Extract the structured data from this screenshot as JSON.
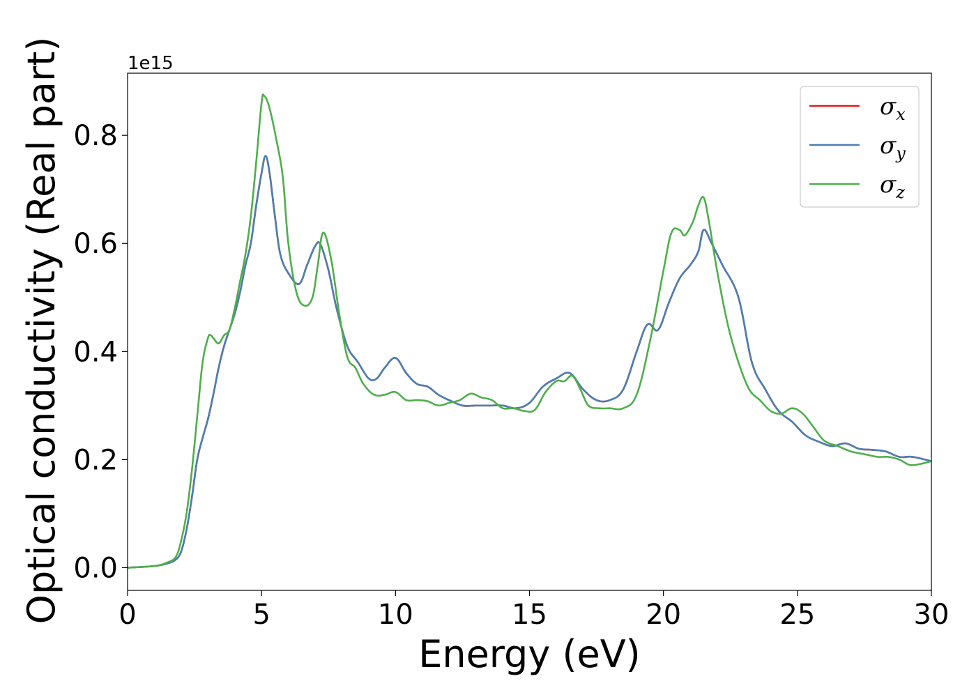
{
  "chart_data": {
    "type": "line",
    "xlabel": "Energy (eV)",
    "ylabel": "Optical conductivity (Real part)",
    "y_offset_text": "1e15",
    "xlim": [
      0,
      30
    ],
    "ylim": [
      -0.042,
      0.915
    ],
    "x_ticks": [
      0,
      5,
      10,
      15,
      20,
      25,
      30
    ],
    "x_tick_labels": [
      "0",
      "5",
      "10",
      "15",
      "20",
      "25",
      "30"
    ],
    "y_ticks": [
      0.0,
      0.2,
      0.4,
      0.6,
      0.8
    ],
    "y_tick_labels": [
      "0.0",
      "0.2",
      "0.4",
      "0.6",
      "0.8"
    ],
    "grid": false,
    "legend_position": "top-right",
    "series": [
      {
        "name": "σx",
        "label_base": "σ",
        "label_sub": "x",
        "color": "#e41a1c",
        "x": [
          0,
          1,
          1.5,
          1.8,
          2.0,
          2.2,
          2.4,
          2.6,
          2.8,
          3.0,
          3.2,
          3.4,
          3.6,
          3.8,
          4.0,
          4.2,
          4.4,
          4.6,
          4.8,
          5.0,
          5.15,
          5.3,
          5.5,
          5.7,
          6.0,
          6.4,
          6.7,
          7.0,
          7.2,
          7.5,
          7.8,
          8.2,
          8.6,
          9.0,
          9.3,
          9.6,
          10.0,
          10.4,
          10.8,
          11.2,
          11.6,
          12.0,
          12.5,
          13.0,
          13.5,
          14.0,
          14.5,
          15.0,
          15.5,
          16.0,
          16.5,
          17.0,
          17.5,
          18.0,
          18.5,
          19.0,
          19.4,
          19.8,
          20.2,
          20.6,
          21.0,
          21.3,
          21.5,
          21.8,
          22.2,
          22.8,
          23.3,
          23.8,
          24.3,
          24.8,
          25.3,
          25.8,
          26.3,
          26.8,
          27.3,
          27.8,
          28.3,
          28.8,
          29.3,
          30.0
        ],
        "y": [
          0.0,
          0.003,
          0.008,
          0.015,
          0.03,
          0.07,
          0.13,
          0.2,
          0.24,
          0.275,
          0.32,
          0.37,
          0.41,
          0.44,
          0.47,
          0.51,
          0.56,
          0.6,
          0.67,
          0.73,
          0.762,
          0.73,
          0.65,
          0.58,
          0.545,
          0.525,
          0.56,
          0.595,
          0.598,
          0.55,
          0.48,
          0.41,
          0.38,
          0.35,
          0.35,
          0.37,
          0.388,
          0.36,
          0.34,
          0.335,
          0.32,
          0.31,
          0.3,
          0.3,
          0.3,
          0.3,
          0.295,
          0.305,
          0.335,
          0.35,
          0.36,
          0.33,
          0.31,
          0.31,
          0.33,
          0.4,
          0.45,
          0.44,
          0.49,
          0.535,
          0.56,
          0.585,
          0.625,
          0.6,
          0.56,
          0.5,
          0.38,
          0.33,
          0.29,
          0.27,
          0.245,
          0.233,
          0.225,
          0.23,
          0.22,
          0.218,
          0.215,
          0.205,
          0.205,
          0.197
        ]
      },
      {
        "name": "σy",
        "label_base": "σ",
        "label_sub": "y",
        "color": "#4a7fb4",
        "x": [
          0,
          1,
          1.5,
          1.8,
          2.0,
          2.2,
          2.4,
          2.6,
          2.8,
          3.0,
          3.2,
          3.4,
          3.6,
          3.8,
          4.0,
          4.2,
          4.4,
          4.6,
          4.8,
          5.0,
          5.15,
          5.3,
          5.5,
          5.7,
          6.0,
          6.4,
          6.7,
          7.0,
          7.2,
          7.5,
          7.8,
          8.2,
          8.6,
          9.0,
          9.3,
          9.6,
          10.0,
          10.4,
          10.8,
          11.2,
          11.6,
          12.0,
          12.5,
          13.0,
          13.5,
          14.0,
          14.5,
          15.0,
          15.5,
          16.0,
          16.5,
          17.0,
          17.5,
          18.0,
          18.5,
          19.0,
          19.4,
          19.8,
          20.2,
          20.6,
          21.0,
          21.3,
          21.5,
          21.8,
          22.2,
          22.8,
          23.3,
          23.8,
          24.3,
          24.8,
          25.3,
          25.8,
          26.3,
          26.8,
          27.3,
          27.8,
          28.3,
          28.8,
          29.3,
          30.0
        ],
        "y": [
          0.0,
          0.003,
          0.008,
          0.015,
          0.03,
          0.07,
          0.13,
          0.2,
          0.24,
          0.275,
          0.32,
          0.37,
          0.41,
          0.44,
          0.47,
          0.51,
          0.56,
          0.6,
          0.67,
          0.73,
          0.762,
          0.73,
          0.65,
          0.58,
          0.545,
          0.525,
          0.56,
          0.595,
          0.598,
          0.55,
          0.48,
          0.41,
          0.38,
          0.35,
          0.35,
          0.37,
          0.388,
          0.36,
          0.34,
          0.335,
          0.32,
          0.31,
          0.3,
          0.3,
          0.3,
          0.3,
          0.295,
          0.305,
          0.335,
          0.35,
          0.36,
          0.33,
          0.31,
          0.31,
          0.33,
          0.4,
          0.45,
          0.44,
          0.49,
          0.535,
          0.56,
          0.585,
          0.625,
          0.6,
          0.56,
          0.5,
          0.38,
          0.33,
          0.29,
          0.27,
          0.245,
          0.233,
          0.225,
          0.23,
          0.22,
          0.218,
          0.215,
          0.205,
          0.205,
          0.197
        ]
      },
      {
        "name": "σz",
        "label_base": "σ",
        "label_sub": "z",
        "color": "#4daf4a",
        "x": [
          0,
          1,
          1.5,
          1.8,
          2.0,
          2.2,
          2.4,
          2.6,
          2.8,
          3.0,
          3.1,
          3.2,
          3.4,
          3.6,
          3.8,
          4.0,
          4.2,
          4.4,
          4.6,
          4.8,
          5.0,
          5.1,
          5.3,
          5.6,
          5.8,
          6.0,
          6.3,
          6.6,
          6.9,
          7.1,
          7.3,
          7.6,
          7.9,
          8.2,
          8.5,
          8.8,
          9.2,
          9.6,
          10.0,
          10.4,
          10.8,
          11.2,
          11.6,
          12.0,
          12.4,
          12.8,
          13.2,
          13.6,
          14.0,
          14.4,
          14.8,
          15.2,
          15.6,
          16.0,
          16.3,
          16.6,
          16.9,
          17.2,
          17.6,
          18.0,
          18.5,
          19.0,
          19.5,
          20.0,
          20.3,
          20.6,
          20.8,
          21.1,
          21.3,
          21.5,
          21.7,
          22.0,
          22.4,
          22.8,
          23.2,
          23.6,
          24.0,
          24.4,
          24.8,
          25.2,
          25.6,
          26.0,
          26.5,
          27.0,
          27.5,
          28.0,
          28.4,
          28.8,
          29.2,
          29.6,
          30.0
        ],
        "y": [
          0.0,
          0.003,
          0.01,
          0.02,
          0.05,
          0.1,
          0.18,
          0.28,
          0.38,
          0.425,
          0.43,
          0.425,
          0.415,
          0.43,
          0.44,
          0.48,
          0.53,
          0.58,
          0.65,
          0.75,
          0.86,
          0.873,
          0.85,
          0.78,
          0.72,
          0.6,
          0.51,
          0.485,
          0.5,
          0.56,
          0.62,
          0.57,
          0.47,
          0.39,
          0.37,
          0.34,
          0.32,
          0.32,
          0.325,
          0.31,
          0.31,
          0.308,
          0.3,
          0.305,
          0.31,
          0.322,
          0.315,
          0.31,
          0.295,
          0.295,
          0.29,
          0.292,
          0.325,
          0.345,
          0.345,
          0.355,
          0.33,
          0.3,
          0.295,
          0.295,
          0.295,
          0.32,
          0.42,
          0.55,
          0.62,
          0.625,
          0.615,
          0.64,
          0.67,
          0.685,
          0.64,
          0.55,
          0.45,
          0.38,
          0.33,
          0.31,
          0.29,
          0.285,
          0.295,
          0.285,
          0.26,
          0.235,
          0.225,
          0.215,
          0.21,
          0.205,
          0.205,
          0.2,
          0.19,
          0.192,
          0.197
        ]
      }
    ]
  }
}
